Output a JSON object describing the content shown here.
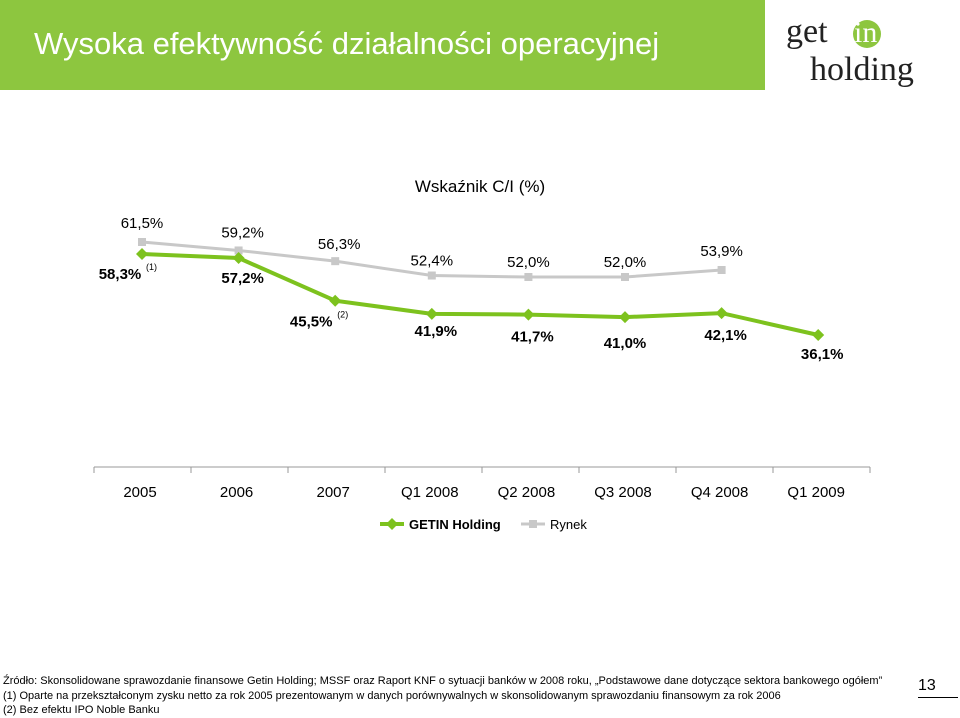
{
  "slide": {
    "title": "Wysoka efektywność działalności operacyjnej",
    "logo_top": "get",
    "logo_in": "in",
    "logo_bottom": "holding",
    "page_number": "13"
  },
  "colors": {
    "header": "#8dc63f",
    "getin_series": "#7dc21e",
    "market_series": "#c8c8c8"
  },
  "chart_data": {
    "type": "line",
    "title": "Wskaźnik C/I (%)",
    "categories": [
      "2005",
      "2006",
      "2007",
      "Q1 2008",
      "Q2 2008",
      "Q3 2008",
      "Q4 2008",
      "Q1 2009"
    ],
    "series": [
      {
        "name": "GETIN Holding",
        "values": [
          58.3,
          57.2,
          45.5,
          41.9,
          41.7,
          41.0,
          42.1,
          36.1
        ],
        "labels": [
          "58,3%",
          "57,2%",
          "45,5%",
          "41,9%",
          "41,7%",
          "41,0%",
          "42,1%",
          "36,1%"
        ],
        "footnotes": [
          "(1)",
          "",
          "(2)",
          "",
          "",
          "",
          "",
          ""
        ]
      },
      {
        "name": "Rynek",
        "values": [
          61.5,
          59.2,
          56.3,
          52.4,
          52.0,
          52.0,
          53.9,
          null
        ],
        "labels": [
          "61,5%",
          "59,2%",
          "56,3%",
          "52,4%",
          "52,0%",
          "52,0%",
          "53,9%",
          ""
        ]
      }
    ],
    "legend_position": "bottom",
    "grid": false
  },
  "footer": {
    "source": "Źródło: Skonsolidowane sprawozdanie finansowe Getin Holding; MSSF oraz  Raport KNF o sytuacji banków w 2008 roku, „Podstawowe dane dotyczące sektora bankowego ogółem”",
    "note1": "(1) Oparte na przekształconym zysku netto za rok 2005 prezentowanym w danych porównywalnych w skonsolidowanym sprawozdaniu finansowym za rok 2006",
    "note2": "(2) Bez efektu IPO Noble Banku"
  }
}
